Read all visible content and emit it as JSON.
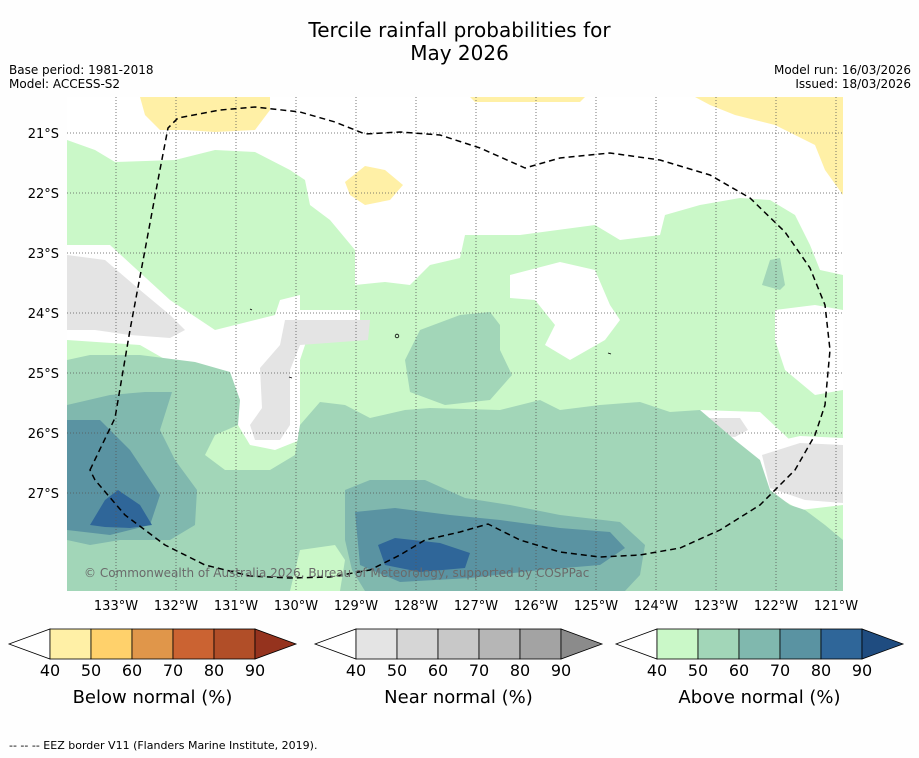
{
  "title": {
    "line1": "Tercile rainfall probabilities for",
    "line2": "May 2026"
  },
  "meta": {
    "base_period": "Base period: 1981-2018",
    "model": "Model: ACCESS-S2",
    "model_run": "Model run: 16/03/2026",
    "issued": "Issued: 18/03/2026"
  },
  "map": {
    "copyright": "© Commonwealth of Australia 2026, Bureau of Meteorology, supported by COSPPac",
    "lat_labels": [
      "21°S",
      "22°S",
      "23°S",
      "24°S",
      "25°S",
      "26°S",
      "27°S"
    ],
    "lon_labels": [
      "133°W",
      "132°W",
      "131°W",
      "130°W",
      "129°W",
      "128°W",
      "127°W",
      "126°W",
      "125°W",
      "124°W",
      "123°W",
      "122°W",
      "121°W"
    ]
  },
  "colorbars": [
    {
      "label": "Below normal (%)",
      "ticks": [
        "40",
        "50",
        "60",
        "70",
        "80",
        "90"
      ],
      "colors": [
        "#fff0a6",
        "#ffd16b",
        "#e0964a",
        "#cb6332",
        "#b14e28",
        "#95331e"
      ]
    },
    {
      "label": "Near normal (%)",
      "ticks": [
        "40",
        "50",
        "60",
        "70",
        "80",
        "90"
      ],
      "colors": [
        "#e4e4e4",
        "#d6d6d6",
        "#c8c8c8",
        "#b6b6b6",
        "#a3a3a3",
        "#8b8b8b"
      ]
    },
    {
      "label": "Above normal (%)",
      "ticks": [
        "40",
        "50",
        "60",
        "70",
        "80",
        "90"
      ],
      "colors": [
        "#caf8c8",
        "#a2d6b8",
        "#80b8ae",
        "#5a93a2",
        "#2f6699",
        "#1f4c80"
      ]
    }
  ],
  "footer": "--  --  -- EEZ border V11 (Flanders Marine Institute, 2019)."
}
